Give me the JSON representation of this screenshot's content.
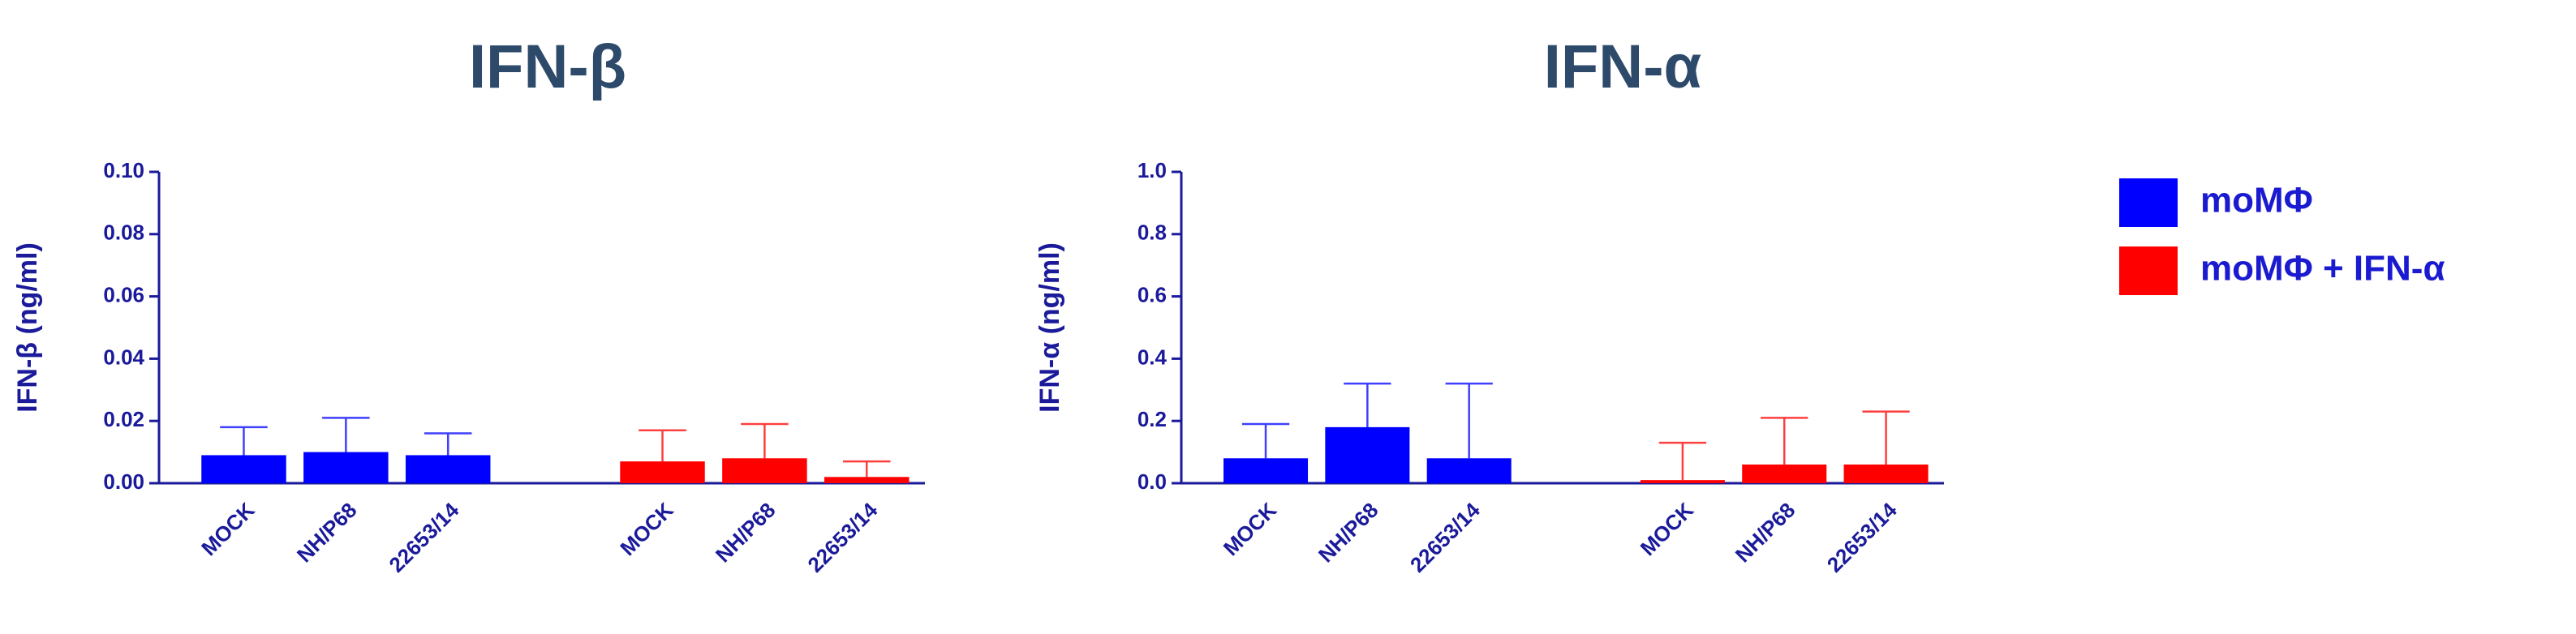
{
  "chart_data": [
    {
      "type": "bar",
      "title": "IFN-β",
      "y_label": "IFN-β (ng/ml)",
      "categories": [
        "MOCK",
        "NH/P68",
        "22653/14",
        "MOCK",
        "NH/P68",
        "22653/14"
      ],
      "series": [
        {
          "name": "moMΦ",
          "color": "#0000ff",
          "values": [
            0.009,
            0.01,
            0.009,
            null,
            null,
            null
          ],
          "errors": [
            0.009,
            0.011,
            0.007,
            null,
            null,
            null
          ]
        },
        {
          "name": "moMΦ + IFN-α",
          "color": "#ff0000",
          "values": [
            null,
            null,
            null,
            0.007,
            0.008,
            0.002
          ],
          "errors": [
            null,
            null,
            null,
            0.01,
            0.011,
            0.005
          ]
        }
      ],
      "ylim": [
        0,
        0.1
      ],
      "yticks": [
        {
          "value": 0,
          "label": "0.00"
        },
        0.02,
        0.04,
        0.06,
        0.08,
        {
          "value": 0.1,
          "label": "0.10"
        }
      ]
    },
    {
      "type": "bar",
      "title": "IFN-α",
      "y_label": "IFN-α (ng/ml)",
      "categories": [
        "MOCK",
        "NH/P68",
        "22653/14",
        "MOCK",
        "NH/P68",
        "22653/14"
      ],
      "series": [
        {
          "name": "moMΦ",
          "color": "#0000ff",
          "values": [
            0.08,
            0.18,
            0.08,
            null,
            null,
            null
          ],
          "errors": [
            0.11,
            0.14,
            0.24,
            null,
            null,
            null
          ]
        },
        {
          "name": "moMΦ + IFN-α",
          "color": "#ff0000",
          "values": [
            null,
            null,
            null,
            0.01,
            0.06,
            0.06
          ],
          "errors": [
            null,
            null,
            null,
            0.12,
            0.15,
            0.17
          ]
        }
      ],
      "ylim": [
        0,
        1.0
      ],
      "yticks": [
        {
          "value": 0,
          "label": "0.0"
        },
        0.2,
        0.4,
        0.6,
        0.8,
        {
          "value": 1.0,
          "label": "1.0"
        }
      ]
    }
  ]
}
